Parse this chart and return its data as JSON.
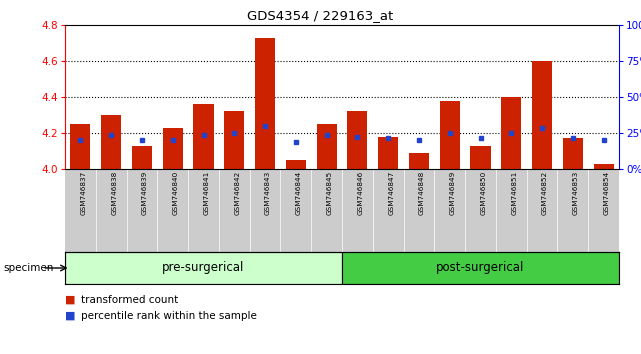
{
  "title": "GDS4354 / 229163_at",
  "samples": [
    "GSM746837",
    "GSM746838",
    "GSM746839",
    "GSM746840",
    "GSM746841",
    "GSM746842",
    "GSM746843",
    "GSM746844",
    "GSM746845",
    "GSM746846",
    "GSM746847",
    "GSM746848",
    "GSM746849",
    "GSM746850",
    "GSM746851",
    "GSM746852",
    "GSM746853",
    "GSM746854"
  ],
  "bar_values": [
    4.25,
    4.3,
    4.13,
    4.23,
    4.36,
    4.32,
    4.73,
    4.05,
    4.25,
    4.32,
    4.18,
    4.09,
    4.38,
    4.13,
    4.4,
    4.6,
    4.17,
    4.03
  ],
  "blue_values": [
    4.16,
    4.19,
    4.16,
    4.16,
    4.19,
    4.2,
    4.24,
    4.15,
    4.19,
    4.18,
    4.17,
    4.16,
    4.2,
    4.17,
    4.2,
    4.23,
    4.17,
    4.16
  ],
  "y_min": 4.0,
  "y_max": 4.8,
  "y_ticks": [
    4.0,
    4.2,
    4.4,
    4.6,
    4.8
  ],
  "y2_ticks": [
    0,
    25,
    50,
    75,
    100
  ],
  "bar_color": "#cc2200",
  "blue_color": "#2244cc",
  "pre_n": 9,
  "pre_surgical_label": "pre-surgerical",
  "post_surgical_label": "post-surgerical",
  "pre_color": "#ccffcc",
  "post_color": "#44cc44",
  "label_bg": "#cccccc",
  "specimen_label": "specimen",
  "legend_bar": "transformed count",
  "legend_blue": "percentile rank within the sample"
}
